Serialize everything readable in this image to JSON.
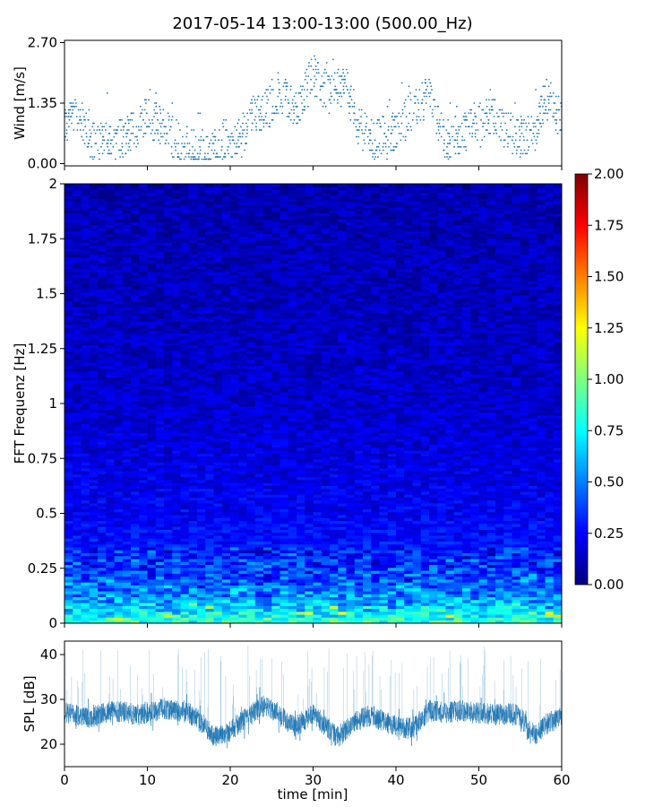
{
  "title": "2017-05-14 13:00-13:00 (500.00_Hz)",
  "colors": {
    "series": "#1f77b4",
    "colormap": [
      "#00007f",
      "#0000ff",
      "#007fff",
      "#00ffff",
      "#7fff7f",
      "#ffff00",
      "#ff7f00",
      "#ff0000",
      "#7f0000"
    ]
  },
  "chart_data": [
    {
      "type": "scatter",
      "name": "wind",
      "xlabel": "",
      "ylabel": "Wind [m/s]",
      "xlim": [
        0,
        60
      ],
      "ylim": [
        -0.05,
        2.75
      ],
      "yticks": [
        "0.00",
        "1.35",
        "2.70"
      ],
      "ytick_values": [
        0.0,
        1.35,
        2.7
      ],
      "grid": false,
      "x_knots": [
        0,
        2,
        3,
        6,
        9,
        10,
        12,
        14,
        15,
        17,
        19,
        21,
        23,
        25,
        26,
        28,
        30,
        32,
        34,
        35,
        37,
        39,
        41,
        43,
        44,
        46,
        48,
        50,
        52,
        53,
        55,
        57,
        58,
        60
      ],
      "y_knots": [
        0.95,
        1.1,
        0.5,
        0.45,
        0.85,
        1.0,
        0.85,
        0.45,
        0.4,
        0.25,
        0.55,
        0.5,
        1.1,
        1.3,
        1.55,
        1.2,
        2.0,
        1.55,
        1.85,
        1.0,
        0.55,
        0.6,
        0.95,
        1.35,
        1.5,
        0.5,
        0.7,
        0.95,
        1.05,
        0.75,
        0.6,
        0.7,
        1.55,
        0.95
      ]
    },
    {
      "type": "heatmap",
      "name": "spectrogram",
      "xlabel": "",
      "ylabel": "FFT Frequenz [Hz]",
      "xlim": [
        0,
        60
      ],
      "ylim": [
        0,
        2
      ],
      "yticks": [
        "0",
        "0.25",
        "0.5",
        "0.75",
        "1",
        "1.25",
        "1.5",
        "1.75",
        "2"
      ],
      "ytick_values": [
        0,
        0.25,
        0.5,
        0.75,
        1.0,
        1.25,
        1.5,
        1.75,
        2.0
      ],
      "colorbar": {
        "range": [
          0,
          2
        ],
        "ticks": [
          "0.00",
          "0.25",
          "0.50",
          "0.75",
          "1.00",
          "1.25",
          "1.50",
          "1.75",
          "2.00"
        ],
        "tick_values": [
          0,
          0.25,
          0.5,
          0.75,
          1.0,
          1.25,
          1.5,
          1.75,
          2.0
        ],
        "colormap": "jet"
      },
      "level_by_frequency": [
        [
          0,
          0.85
        ],
        [
          0.05,
          0.72
        ],
        [
          0.1,
          0.55
        ],
        [
          0.2,
          0.4
        ],
        [
          0.3,
          0.3
        ],
        [
          0.5,
          0.23
        ],
        [
          1.0,
          0.15
        ],
        [
          1.5,
          0.12
        ],
        [
          2.0,
          0.1
        ]
      ]
    },
    {
      "type": "line",
      "name": "spl",
      "xlabel": "time [min]",
      "ylabel": "SPL [dB]",
      "xlim": [
        0,
        60
      ],
      "ylim": [
        15,
        43
      ],
      "yticks": [
        "20",
        "30",
        "40"
      ],
      "ytick_values": [
        20,
        30,
        40
      ],
      "xticks": [
        "0",
        "10",
        "20",
        "30",
        "40",
        "50",
        "60"
      ],
      "xtick_values": [
        0,
        10,
        20,
        30,
        40,
        50,
        60
      ],
      "grid": false,
      "x_knots": [
        0,
        3,
        6,
        9,
        12,
        15,
        17,
        18,
        20,
        22,
        24,
        26,
        27,
        28,
        29,
        30,
        31,
        32,
        33,
        35,
        37,
        38,
        40,
        42,
        44,
        46,
        48,
        50,
        52,
        54,
        55,
        56,
        57,
        58,
        60
      ],
      "y_knots": [
        27,
        26,
        27.5,
        26.5,
        28,
        27,
        24,
        21.5,
        23,
        26,
        28.5,
        27,
        24.5,
        24,
        25.5,
        26.5,
        25,
        23,
        21.5,
        25,
        26.5,
        25.5,
        24,
        23.5,
        27.5,
        27,
        27.5,
        27,
        26.5,
        27,
        26,
        23.5,
        22,
        24.5,
        26
      ],
      "spread_db": 2.4,
      "spike_max_db": 42
    }
  ]
}
